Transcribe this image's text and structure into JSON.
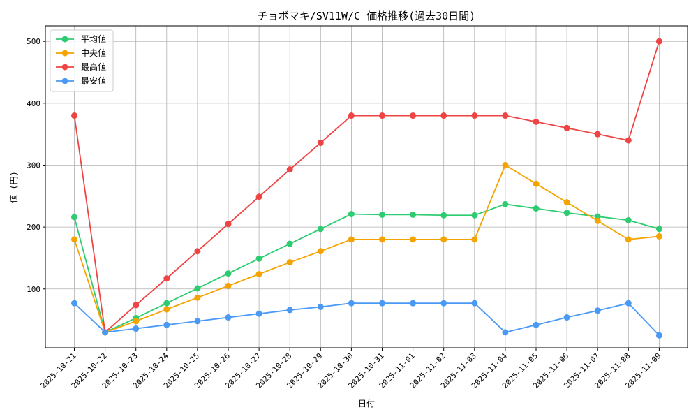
{
  "chart_data": {
    "type": "line",
    "title": "チョボマキ/SV11W/C 価格推移(過去30日間)",
    "xlabel": "日付",
    "ylabel": "値 (円)",
    "x": [
      "2025-10-21",
      "2025-10-22",
      "2025-10-23",
      "2025-10-24",
      "2025-10-25",
      "2025-10-26",
      "2025-10-27",
      "2025-10-28",
      "2025-10-29",
      "2025-10-30",
      "2025-10-31",
      "2025-11-01",
      "2025-11-02",
      "2025-11-03",
      "2025-11-04",
      "2025-11-05",
      "2025-11-06",
      "2025-11-07",
      "2025-11-08",
      "2025-11-09"
    ],
    "ylim": [
      5,
      525
    ],
    "yticks": [
      100,
      200,
      300,
      400,
      500
    ],
    "grid": true,
    "legend_position": "top-left",
    "series": [
      {
        "name": "平均値",
        "color": "#2ecc71",
        "values": [
          216,
          30,
          53,
          77,
          101,
          125,
          149,
          173,
          197,
          221,
          220,
          220,
          219,
          219,
          237,
          230,
          223,
          217,
          211,
          197
        ]
      },
      {
        "name": "中央値",
        "color": "#f5a300",
        "values": [
          180,
          30,
          48,
          67,
          86,
          105,
          124,
          143,
          161,
          180,
          180,
          180,
          180,
          180,
          300,
          270,
          240,
          210,
          180,
          185
        ]
      },
      {
        "name": "最高値",
        "color": "#ef4444",
        "values": [
          380,
          30,
          74,
          117,
          161,
          205,
          249,
          293,
          336,
          380,
          380,
          380,
          380,
          380,
          380,
          370,
          360,
          350,
          340,
          500
        ]
      },
      {
        "name": "最安値",
        "color": "#4a9af5",
        "values": [
          77,
          30,
          36,
          42,
          48,
          54,
          60,
          66,
          71,
          77,
          77,
          77,
          77,
          77,
          30,
          42,
          54,
          65,
          77,
          25
        ]
      }
    ]
  }
}
